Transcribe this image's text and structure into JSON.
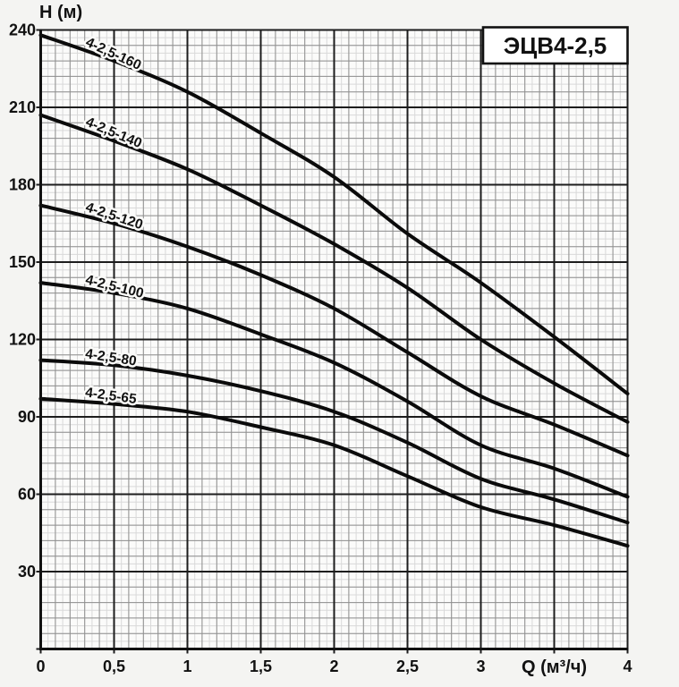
{
  "page": {
    "background": "#f4f4f2"
  },
  "chart_data": {
    "type": "line",
    "title": "ЭЦВ4-2,5",
    "ylabel": "H (м)",
    "xlabel": "Q (м³/ч)",
    "xlim": [
      0,
      4
    ],
    "ylim": [
      0,
      240
    ],
    "x_major_step": 0.5,
    "x_minor_step": 0.1,
    "x_subminor_step": 0.05,
    "y_major_step": 30,
    "y_minor_step": 6,
    "y_subminor_step": 3,
    "grid": true,
    "legend_position": "on-curve",
    "x_tick_values": [
      0,
      0.5,
      1,
      1.5,
      2,
      2.5,
      3,
      4
    ],
    "x_tick_labels": [
      "0",
      "0,5",
      "1",
      "1,5",
      "2",
      "2,5",
      "3",
      "4"
    ],
    "xlabel_at": 3.5,
    "y_tick_values": [
      30,
      60,
      90,
      120,
      150,
      180,
      210,
      240
    ],
    "y_tick_labels": [
      "30",
      "60",
      "90",
      "120",
      "150",
      "180",
      "210",
      "240"
    ],
    "x": [
      0,
      0.5,
      1,
      1.5,
      2,
      2.5,
      3,
      3.5,
      4
    ],
    "series": [
      {
        "name": "4-2,5-160",
        "values": [
          238,
          228,
          216,
          200,
          183,
          161,
          142,
          121,
          99
        ],
        "label_x": 0.3
      },
      {
        "name": "4-2,5-140",
        "values": [
          207,
          197,
          186,
          172,
          157,
          140,
          120,
          103,
          88
        ],
        "label_x": 0.3
      },
      {
        "name": "4-2,5-120",
        "values": [
          172,
          165,
          156,
          145,
          132,
          115,
          98,
          87,
          75
        ],
        "label_x": 0.3
      },
      {
        "name": "4-2,5-100",
        "values": [
          142,
          138,
          132,
          122,
          111,
          96,
          79,
          70,
          59
        ],
        "label_x": 0.3
      },
      {
        "name": "4-2,5-80",
        "values": [
          112,
          110,
          106,
          100,
          92,
          80,
          66,
          58,
          49
        ],
        "label_x": 0.3
      },
      {
        "name": "4-2,5-65",
        "values": [
          97,
          95,
          92,
          86,
          79,
          67,
          55,
          48,
          40
        ],
        "label_x": 0.3
      }
    ],
    "colors": {
      "curve": "#0b0b0b",
      "grid_subminor": "#d9d9d9",
      "grid_minor": "#8f8f8f",
      "grid_major": "#1d1d1d",
      "paper": "#fbfbfa",
      "text": "#111111"
    }
  }
}
